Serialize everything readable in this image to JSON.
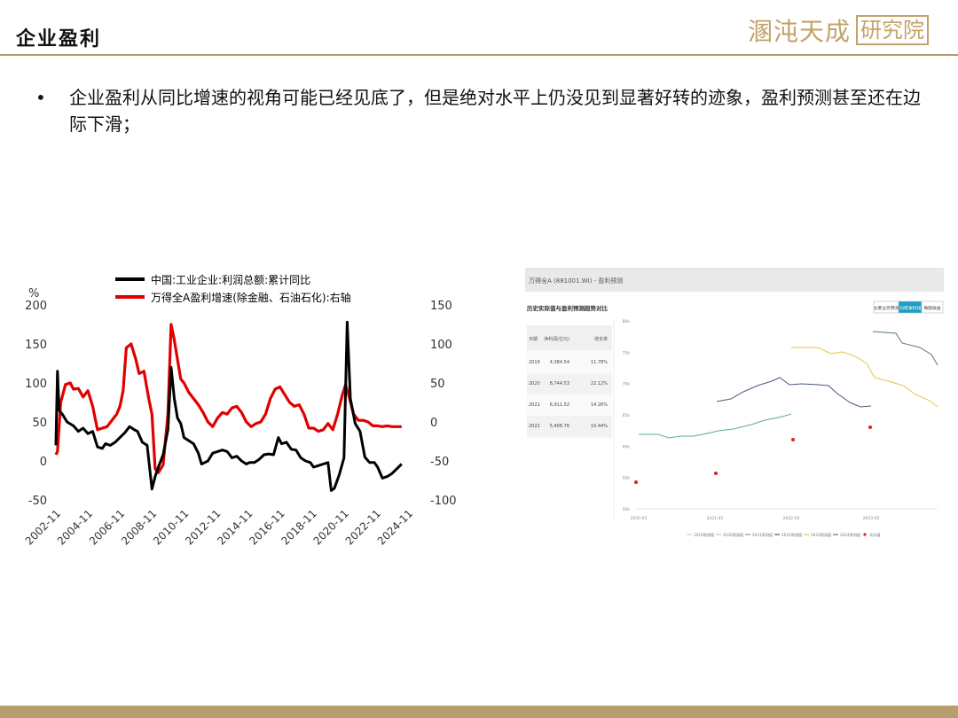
{
  "header": {
    "title": "企业盈利",
    "logo_script": "溷沌天成",
    "logo_box": "研究院"
  },
  "bullet": {
    "text": "企业盈利从同比增速的视角可能已经见底了，但是绝对水平上仍没见到显著好转的迹象，盈利预测甚至还在边际下滑；"
  },
  "colors": {
    "accent": "#b89e6e",
    "series_black": "#000000",
    "series_red": "#e00000"
  },
  "chart_data": [
    {
      "type": "line",
      "title": "",
      "ylabel_left": "%",
      "ylim_left": [
        -50,
        200
      ],
      "ylim_right": [
        -100,
        150
      ],
      "yticks_left": [
        "200",
        "150",
        "100",
        "50",
        "0",
        "-50"
      ],
      "yticks_right": [
        "150",
        "100",
        "50",
        "0",
        "-50",
        "-100"
      ],
      "xticks": [
        "2002-11",
        "2004-11",
        "2006-11",
        "2008-11",
        "2010-11",
        "2012-11",
        "2014-11",
        "2016-11",
        "2018-11",
        "2020-11",
        "2022-11",
        "2024-11"
      ],
      "legend_position": "top",
      "series": [
        {
          "name": "中国:工业企业:利润总额:累计同比",
          "axis": "left",
          "color": "#000000",
          "x": [
            2002.9,
            2003.0,
            2003.1,
            2003.3,
            2003.6,
            2004.0,
            2004.3,
            2004.6,
            2004.9,
            2005.2,
            2005.5,
            2005.8,
            2006.0,
            2006.3,
            2006.6,
            2006.9,
            2007.2,
            2007.5,
            2007.8,
            2008.0,
            2008.3,
            2008.6,
            2008.9,
            2009.1,
            2009.3,
            2009.6,
            2009.9,
            2010.1,
            2010.3,
            2010.5,
            2010.7,
            2010.9,
            2011.2,
            2011.5,
            2011.8,
            2012.0,
            2012.2,
            2012.4,
            2012.7,
            2013.0,
            2013.3,
            2013.6,
            2013.9,
            2014.2,
            2014.5,
            2014.8,
            2015.0,
            2015.3,
            2015.6,
            2015.9,
            2016.2,
            2016.5,
            2016.8,
            2017.0,
            2017.3,
            2017.6,
            2017.9,
            2018.2,
            2018.5,
            2018.8,
            2019.0,
            2019.3,
            2019.6,
            2019.9,
            2020.1,
            2020.3,
            2020.6,
            2020.9,
            2021.1,
            2021.3,
            2021.6,
            2021.9,
            2022.2,
            2022.5,
            2022.8,
            2023.0,
            2023.3,
            2023.6,
            2023.9,
            2024.2,
            2024.5
          ],
          "values": [
            20,
            115,
            65,
            60,
            50,
            45,
            38,
            42,
            35,
            38,
            18,
            16,
            22,
            20,
            24,
            30,
            36,
            44,
            40,
            38,
            24,
            20,
            -36,
            -20,
            -8,
            8,
            40,
            120,
            80,
            55,
            48,
            30,
            26,
            22,
            10,
            -4,
            -2,
            0,
            10,
            12,
            14,
            12,
            4,
            6,
            0,
            -4,
            -2,
            -2,
            2,
            8,
            9,
            8,
            30,
            22,
            24,
            15,
            14,
            4,
            0,
            -2,
            -8,
            -6,
            -4,
            -2,
            -38,
            -35,
            -18,
            4,
            178,
            80,
            48,
            38,
            5,
            -2,
            -2,
            -8,
            -22,
            -20,
            -16,
            -10,
            -4
          ]
        },
        {
          "name": "万得全A盈利增速(除金融、石油石化):右轴",
          "axis": "right",
          "color": "#e00000",
          "x": [
            2002.9,
            2003.0,
            2003.2,
            2003.5,
            2003.8,
            2004.0,
            2004.3,
            2004.6,
            2004.9,
            2005.2,
            2005.5,
            2005.8,
            2006.1,
            2006.4,
            2006.7,
            2006.9,
            2007.1,
            2007.3,
            2007.6,
            2007.9,
            2008.1,
            2008.4,
            2008.7,
            2008.9,
            2009.1,
            2009.3,
            2009.6,
            2009.9,
            2010.1,
            2010.3,
            2010.5,
            2010.7,
            2010.9,
            2011.2,
            2011.5,
            2011.8,
            2012.1,
            2012.4,
            2012.7,
            2013.0,
            2013.3,
            2013.6,
            2013.9,
            2014.2,
            2014.5,
            2014.8,
            2015.1,
            2015.4,
            2015.7,
            2016.0,
            2016.3,
            2016.6,
            2016.9,
            2017.2,
            2017.5,
            2017.8,
            2018.1,
            2018.4,
            2018.7,
            2019.0,
            2019.3,
            2019.6,
            2019.9,
            2020.2,
            2020.5,
            2020.8,
            2021.0,
            2021.2,
            2021.5,
            2021.8,
            2022.1,
            2022.4,
            2022.7,
            2023.0,
            2023.3,
            2023.6,
            2023.9,
            2024.2,
            2024.5
          ],
          "values": [
            -42,
            -38,
            25,
            48,
            50,
            42,
            43,
            32,
            40,
            20,
            -10,
            -8,
            -6,
            2,
            10,
            20,
            40,
            95,
            100,
            80,
            62,
            65,
            30,
            10,
            -60,
            -65,
            -55,
            10,
            125,
            105,
            80,
            55,
            50,
            38,
            30,
            22,
            12,
            0,
            -6,
            5,
            12,
            10,
            18,
            20,
            12,
            0,
            -6,
            -2,
            0,
            10,
            30,
            42,
            45,
            35,
            25,
            20,
            22,
            10,
            -8,
            -8,
            -12,
            -10,
            -2,
            -10,
            10,
            35,
            48,
            34,
            10,
            2,
            2,
            0,
            -5,
            -5,
            -6,
            -5,
            -6,
            -6,
            -6
          ]
        }
      ]
    },
    {
      "type": "table",
      "title": "历史实际值与盈利预测趋势对比",
      "panel_title": "万得全A (881001.WI) - 盈利预测",
      "tabs": [
        "主要业务预测",
        "归母净利润",
        "每股收益"
      ],
      "columns": [
        "日期",
        "净利润(亿元)",
        "增长率"
      ],
      "rows": [
        [
          "2019",
          "4,384.54",
          "11.78%"
        ],
        [
          "2020",
          "8,744.53",
          "22.12%"
        ],
        [
          "2021",
          "6,911.52",
          "14.26%"
        ],
        [
          "2022",
          "5,408.76",
          "10.44%"
        ]
      ],
      "yticks": [
        "80k",
        "75k",
        "70k",
        "65k",
        "60k",
        "55k",
        "50k"
      ],
      "xticks": [
        "2020-05",
        "2021-05",
        "2022-05",
        "2023-05"
      ],
      "legend": [
        "2019预测值",
        "2020预测值",
        "2021预测值",
        "2022预测值",
        "2023预测值",
        "2024预测值",
        "实际值"
      ],
      "series_colors": [
        "#c8d2d2",
        "#b4c8d2",
        "#52aca0",
        "#4a5a80",
        "#e0c648",
        "#5c7a7a",
        "#e02020"
      ]
    }
  ]
}
